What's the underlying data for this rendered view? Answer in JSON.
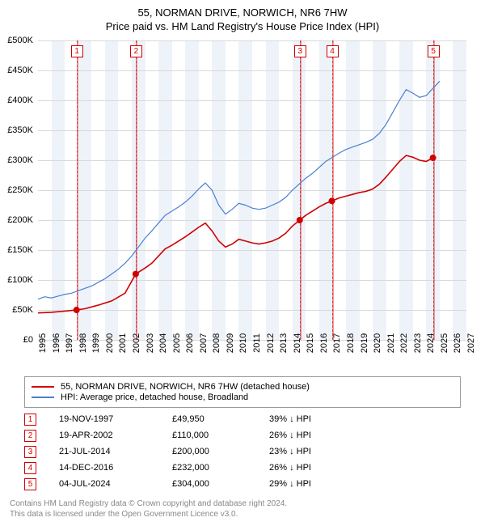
{
  "title_line1": "55, NORMAN DRIVE, NORWICH, NR6 7HW",
  "title_line2": "Price paid vs. HM Land Registry's House Price Index (HPI)",
  "chart": {
    "type": "line",
    "background_color": "#ffffff",
    "grid_color": "#d9d9d9",
    "band_color": "#eef3fa",
    "x_min": 1995,
    "x_max": 2027,
    "x_ticks": [
      1995,
      1996,
      1997,
      1998,
      1999,
      2000,
      2001,
      2002,
      2003,
      2004,
      2005,
      2006,
      2007,
      2008,
      2009,
      2010,
      2011,
      2012,
      2013,
      2014,
      2015,
      2016,
      2017,
      2018,
      2019,
      2020,
      2021,
      2022,
      2023,
      2024,
      2025,
      2026,
      2027
    ],
    "y_min": 0,
    "y_max": 500000,
    "y_ticks": [
      0,
      50000,
      100000,
      150000,
      200000,
      250000,
      300000,
      350000,
      400000,
      450000,
      500000
    ],
    "y_tick_labels": [
      "£0",
      "£50K",
      "£100K",
      "£150K",
      "£200K",
      "£250K",
      "£300K",
      "£350K",
      "£400K",
      "£450K",
      "£500K"
    ],
    "y_label_fontsize": 11,
    "x_label_fontsize": 11,
    "bands": [
      [
        1996,
        1997
      ],
      [
        1998,
        1999
      ],
      [
        2000,
        2001
      ],
      [
        2002,
        2003
      ],
      [
        2004,
        2005
      ],
      [
        2006,
        2007
      ],
      [
        2008,
        2009
      ],
      [
        2010,
        2011
      ],
      [
        2012,
        2013
      ],
      [
        2014,
        2015
      ],
      [
        2016,
        2017
      ],
      [
        2018,
        2019
      ],
      [
        2020,
        2021
      ],
      [
        2022,
        2023
      ],
      [
        2024,
        2025
      ],
      [
        2026,
        2027
      ]
    ],
    "series": [
      {
        "name": "price_paid",
        "color": "#d00000",
        "line_width": 1.6,
        "points": [
          [
            1995.0,
            45000
          ],
          [
            1996.0,
            46000
          ],
          [
            1997.0,
            48000
          ],
          [
            1997.88,
            49950
          ],
          [
            1998.5,
            52000
          ],
          [
            1999.5,
            58000
          ],
          [
            2000.5,
            65000
          ],
          [
            2001.5,
            78000
          ],
          [
            2002.3,
            110000
          ],
          [
            2003.0,
            120000
          ],
          [
            2003.5,
            128000
          ],
          [
            2004.0,
            140000
          ],
          [
            2004.5,
            152000
          ],
          [
            2005.0,
            158000
          ],
          [
            2005.5,
            165000
          ],
          [
            2006.0,
            172000
          ],
          [
            2006.5,
            180000
          ],
          [
            2007.0,
            188000
          ],
          [
            2007.5,
            195000
          ],
          [
            2008.0,
            182000
          ],
          [
            2008.5,
            165000
          ],
          [
            2009.0,
            155000
          ],
          [
            2009.5,
            160000
          ],
          [
            2010.0,
            168000
          ],
          [
            2010.5,
            165000
          ],
          [
            2011.0,
            162000
          ],
          [
            2011.5,
            160000
          ],
          [
            2012.0,
            162000
          ],
          [
            2012.5,
            165000
          ],
          [
            2013.0,
            170000
          ],
          [
            2013.5,
            178000
          ],
          [
            2014.0,
            190000
          ],
          [
            2014.55,
            200000
          ],
          [
            2015.0,
            208000
          ],
          [
            2015.5,
            215000
          ],
          [
            2016.0,
            222000
          ],
          [
            2016.5,
            228000
          ],
          [
            2016.95,
            232000
          ],
          [
            2017.5,
            237000
          ],
          [
            2018.0,
            240000
          ],
          [
            2018.5,
            243000
          ],
          [
            2019.0,
            246000
          ],
          [
            2019.5,
            248000
          ],
          [
            2020.0,
            252000
          ],
          [
            2020.5,
            260000
          ],
          [
            2021.0,
            272000
          ],
          [
            2021.5,
            285000
          ],
          [
            2022.0,
            298000
          ],
          [
            2022.5,
            308000
          ],
          [
            2023.0,
            305000
          ],
          [
            2023.5,
            300000
          ],
          [
            2024.0,
            298000
          ],
          [
            2024.5,
            304000
          ]
        ],
        "sale_markers": [
          {
            "x": 1997.88,
            "y": 49950
          },
          {
            "x": 2002.3,
            "y": 110000
          },
          {
            "x": 2014.55,
            "y": 200000
          },
          {
            "x": 2016.95,
            "y": 232000
          },
          {
            "x": 2024.5,
            "y": 304000
          }
        ]
      },
      {
        "name": "hpi",
        "color": "#4a7fd1",
        "line_width": 1.2,
        "points": [
          [
            1995.0,
            68000
          ],
          [
            1995.5,
            72000
          ],
          [
            1996.0,
            70000
          ],
          [
            1996.5,
            73000
          ],
          [
            1997.0,
            76000
          ],
          [
            1997.5,
            78000
          ],
          [
            1998.0,
            82000
          ],
          [
            1998.5,
            86000
          ],
          [
            1999.0,
            90000
          ],
          [
            1999.5,
            96000
          ],
          [
            2000.0,
            102000
          ],
          [
            2000.5,
            110000
          ],
          [
            2001.0,
            118000
          ],
          [
            2001.5,
            128000
          ],
          [
            2002.0,
            140000
          ],
          [
            2002.5,
            155000
          ],
          [
            2003.0,
            170000
          ],
          [
            2003.5,
            182000
          ],
          [
            2004.0,
            195000
          ],
          [
            2004.5,
            208000
          ],
          [
            2005.0,
            215000
          ],
          [
            2005.5,
            222000
          ],
          [
            2006.0,
            230000
          ],
          [
            2006.5,
            240000
          ],
          [
            2007.0,
            252000
          ],
          [
            2007.5,
            262000
          ],
          [
            2008.0,
            250000
          ],
          [
            2008.5,
            225000
          ],
          [
            2009.0,
            210000
          ],
          [
            2009.5,
            218000
          ],
          [
            2010.0,
            228000
          ],
          [
            2010.5,
            225000
          ],
          [
            2011.0,
            220000
          ],
          [
            2011.5,
            218000
          ],
          [
            2012.0,
            220000
          ],
          [
            2012.5,
            225000
          ],
          [
            2013.0,
            230000
          ],
          [
            2013.5,
            238000
          ],
          [
            2014.0,
            250000
          ],
          [
            2014.5,
            260000
          ],
          [
            2015.0,
            270000
          ],
          [
            2015.5,
            278000
          ],
          [
            2016.0,
            288000
          ],
          [
            2016.5,
            298000
          ],
          [
            2017.0,
            305000
          ],
          [
            2017.5,
            312000
          ],
          [
            2018.0,
            318000
          ],
          [
            2018.5,
            322000
          ],
          [
            2019.0,
            326000
          ],
          [
            2019.5,
            330000
          ],
          [
            2020.0,
            335000
          ],
          [
            2020.5,
            345000
          ],
          [
            2021.0,
            360000
          ],
          [
            2021.5,
            380000
          ],
          [
            2022.0,
            400000
          ],
          [
            2022.5,
            418000
          ],
          [
            2023.0,
            412000
          ],
          [
            2023.5,
            405000
          ],
          [
            2024.0,
            408000
          ],
          [
            2024.5,
            420000
          ],
          [
            2025.0,
            432000
          ]
        ]
      }
    ],
    "marker_boxes": [
      {
        "num": "1",
        "x": 1997.88
      },
      {
        "num": "2",
        "x": 2002.3
      },
      {
        "num": "3",
        "x": 2014.55
      },
      {
        "num": "4",
        "x": 2016.95
      },
      {
        "num": "5",
        "x": 2024.5
      }
    ]
  },
  "legend": {
    "border_color": "#999999",
    "items": [
      {
        "color": "#d00000",
        "label": "55, NORMAN DRIVE, NORWICH, NR6 7HW (detached house)"
      },
      {
        "color": "#4a7fd1",
        "label": "HPI: Average price, detached house, Broadland"
      }
    ]
  },
  "sales": [
    {
      "num": "1",
      "date": "19-NOV-1997",
      "price": "£49,950",
      "diff": "39% ↓ HPI"
    },
    {
      "num": "2",
      "date": "19-APR-2002",
      "price": "£110,000",
      "diff": "26% ↓ HPI"
    },
    {
      "num": "3",
      "date": "21-JUL-2014",
      "price": "£200,000",
      "diff": "23% ↓ HPI"
    },
    {
      "num": "4",
      "date": "14-DEC-2016",
      "price": "£232,000",
      "diff": "26% ↓ HPI"
    },
    {
      "num": "5",
      "date": "04-JUL-2024",
      "price": "£304,000",
      "diff": "29% ↓ HPI"
    }
  ],
  "footer": {
    "line1": "Contains HM Land Registry data © Crown copyright and database right 2024.",
    "line2": "This data is licensed under the Open Government Licence v3.0."
  }
}
